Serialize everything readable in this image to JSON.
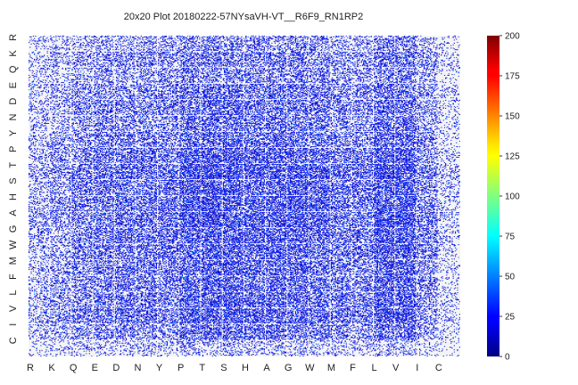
{
  "chart_data": {
    "type": "heatmap",
    "title": "20x20 Plot 20180222-57NYsaVH-VT__R6F9_RN1RP2",
    "x_categories": [
      "R",
      "K",
      "Q",
      "E",
      "D",
      "N",
      "Y",
      "P",
      "T",
      "S",
      "H",
      "A",
      "G",
      "W",
      "M",
      "F",
      "L",
      "V",
      "I",
      "C"
    ],
    "y_categories": [
      "R",
      "K",
      "Q",
      "E",
      "D",
      "N",
      "Y",
      "P",
      "T",
      "S",
      "H",
      "A",
      "G",
      "W",
      "M",
      "F",
      "L",
      "V",
      "I",
      "C"
    ],
    "colorbar": {
      "min": 0,
      "max": 200,
      "ticks": [
        0,
        25,
        50,
        75,
        100,
        125,
        150,
        175,
        200
      ],
      "colormap": "jet"
    },
    "background_color": "#eaeaf2",
    "grid": false,
    "description_values": "dense sub-cell counts, mostly low (0-25), scattered higher values up to ~60"
  }
}
